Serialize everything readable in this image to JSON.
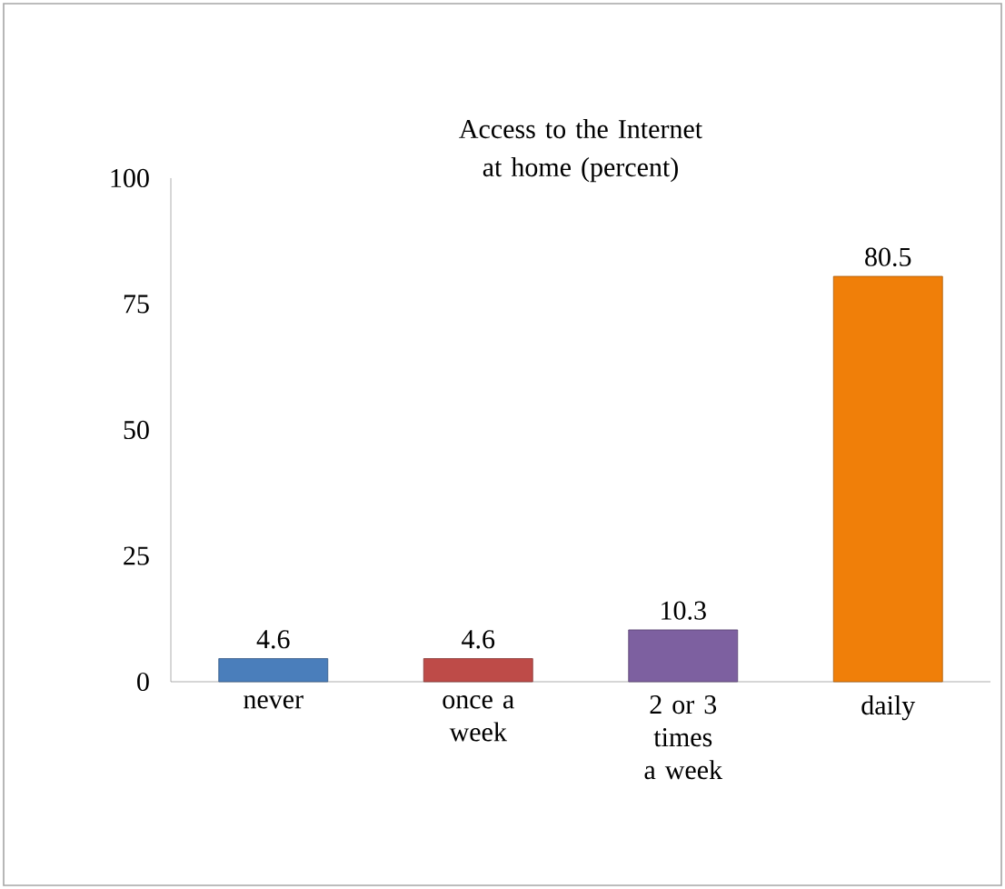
{
  "chart_data": {
    "type": "bar",
    "title": "Access to the Internet  at home (percent)",
    "categories": [
      "never",
      "once a week",
      "2 or 3 times a week",
      "daily"
    ],
    "values": [
      4.6,
      4.6,
      10.3,
      80.5
    ],
    "colors": [
      "#4a7ebb",
      "#be4b48",
      "#7d60a0",
      "#f07f09"
    ],
    "ylim": [
      0,
      100
    ],
    "yticks": [
      0,
      25,
      50,
      75,
      100
    ],
    "data_labels": true
  }
}
